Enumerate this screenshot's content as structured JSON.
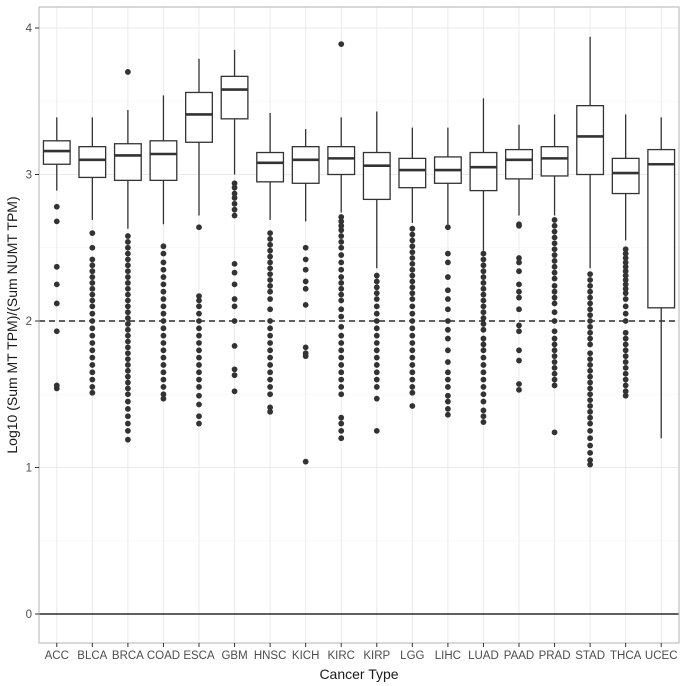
{
  "chart_data": {
    "type": "box",
    "title": "",
    "xlabel": "Cancer Type",
    "ylabel": "Log10 (Sum MT TPM)/(Sum NUMT TPM)",
    "ylim": [
      -0.25,
      4.15
    ],
    "yticks": [
      0,
      1,
      2,
      3,
      4
    ],
    "grid": true,
    "legend": null,
    "reference_lines": [
      {
        "y": 2,
        "style": "dashed"
      },
      {
        "y": 0,
        "style": "solid"
      }
    ],
    "categories": [
      "ACC",
      "BLCA",
      "BRCA",
      "COAD",
      "ESCA",
      "GBM",
      "HNSC",
      "KICH",
      "KIRC",
      "KIRP",
      "LGG",
      "LIHC",
      "LUAD",
      "PAAD",
      "PRAD",
      "STAD",
      "THCA",
      "UCEC"
    ],
    "boxes": [
      {
        "name": "ACC",
        "whisker_low": 2.89,
        "q1": 3.07,
        "median": 3.16,
        "q3": 3.23,
        "whisker_high": 3.39,
        "outliers": [
          2.78,
          2.68,
          2.37,
          2.25,
          2.12,
          1.93,
          1.56,
          1.54
        ]
      },
      {
        "name": "BLCA",
        "whisker_low": 2.69,
        "q1": 2.98,
        "median": 3.1,
        "q3": 3.19,
        "whisker_high": 3.39,
        "outliers": [
          2.6,
          2.5,
          2.42,
          2.38,
          2.34,
          2.3,
          2.26,
          2.22,
          2.18,
          2.14,
          2.1,
          2.05,
          2.0,
          1.95,
          1.9,
          1.85,
          1.8,
          1.75,
          1.7,
          1.65,
          1.6,
          1.55,
          1.51
        ]
      },
      {
        "name": "BRCA",
        "whisker_low": 2.63,
        "q1": 2.96,
        "median": 3.13,
        "q3": 3.21,
        "whisker_high": 3.44,
        "outliers": [
          3.7,
          2.58,
          2.54,
          2.5,
          2.46,
          2.42,
          2.38,
          2.34,
          2.3,
          2.26,
          2.22,
          2.18,
          2.14,
          2.1,
          2.06,
          2.02,
          1.98,
          1.94,
          1.9,
          1.86,
          1.82,
          1.78,
          1.74,
          1.7,
          1.66,
          1.62,
          1.58,
          1.54,
          1.5,
          1.45,
          1.4,
          1.35,
          1.3,
          1.25,
          1.19
        ]
      },
      {
        "name": "COAD",
        "whisker_low": 2.66,
        "q1": 2.96,
        "median": 3.14,
        "q3": 3.23,
        "whisker_high": 3.54,
        "outliers": [
          2.51,
          2.46,
          2.4,
          2.35,
          2.3,
          2.25,
          2.2,
          2.15,
          2.1,
          2.05,
          2.0,
          1.95,
          1.9,
          1.85,
          1.8,
          1.75,
          1.7,
          1.65,
          1.6,
          1.55,
          1.5,
          1.47
        ]
      },
      {
        "name": "ESCA",
        "whisker_low": 2.72,
        "q1": 3.22,
        "median": 3.41,
        "q3": 3.56,
        "whisker_high": 3.79,
        "outliers": [
          2.64,
          2.17,
          2.14,
          2.1,
          2.05,
          2.0,
          1.95,
          1.9,
          1.85,
          1.8,
          1.75,
          1.7,
          1.65,
          1.6,
          1.55,
          1.49,
          1.43,
          1.35,
          1.3
        ]
      },
      {
        "name": "GBM",
        "whisker_low": 3.0,
        "q1": 3.38,
        "median": 3.58,
        "q3": 3.67,
        "whisker_high": 3.85,
        "outliers": [
          2.94,
          2.91,
          2.87,
          2.84,
          2.8,
          2.76,
          2.72,
          2.39,
          2.33,
          2.25,
          2.15,
          2.1,
          2.0,
          1.83,
          1.67,
          1.63,
          1.52
        ]
      },
      {
        "name": "HNSC",
        "whisker_low": 2.69,
        "q1": 2.95,
        "median": 3.08,
        "q3": 3.15,
        "whisker_high": 3.42,
        "outliers": [
          2.6,
          2.56,
          2.52,
          2.48,
          2.44,
          2.4,
          2.36,
          2.32,
          2.28,
          2.24,
          2.2,
          2.15,
          2.08,
          2.0,
          1.95,
          1.9,
          1.85,
          1.8,
          1.75,
          1.7,
          1.65,
          1.6,
          1.55,
          1.5,
          1.41,
          1.38
        ]
      },
      {
        "name": "KICH",
        "whisker_low": 2.68,
        "q1": 2.94,
        "median": 3.1,
        "q3": 3.19,
        "whisker_high": 3.31,
        "outliers": [
          2.5,
          2.42,
          2.35,
          2.27,
          2.22,
          2.11,
          1.82,
          1.78,
          1.76,
          1.04
        ]
      },
      {
        "name": "KIRC",
        "whisker_low": 2.74,
        "q1": 3.0,
        "median": 3.11,
        "q3": 3.19,
        "whisker_high": 3.39,
        "outliers": [
          3.89,
          2.71,
          2.68,
          2.65,
          2.62,
          2.58,
          2.54,
          2.5,
          2.45,
          2.4,
          2.35,
          2.3,
          2.26,
          2.22,
          2.18,
          2.14,
          2.08,
          2.03,
          1.96,
          1.9,
          1.85,
          1.8,
          1.75,
          1.7,
          1.65,
          1.6,
          1.55,
          1.5,
          1.34,
          1.3,
          1.25,
          1.2
        ]
      },
      {
        "name": "KIRP",
        "whisker_low": 2.36,
        "q1": 2.83,
        "median": 3.06,
        "q3": 3.15,
        "whisker_high": 3.43,
        "outliers": [
          2.31,
          2.27,
          2.23,
          2.19,
          2.15,
          2.1,
          2.05,
          2.0,
          1.95,
          1.9,
          1.85,
          1.8,
          1.75,
          1.7,
          1.65,
          1.6,
          1.55,
          1.47,
          1.25
        ]
      },
      {
        "name": "LGG",
        "whisker_low": 2.67,
        "q1": 2.91,
        "median": 3.03,
        "q3": 3.11,
        "whisker_high": 3.32,
        "outliers": [
          2.63,
          2.59,
          2.55,
          2.51,
          2.47,
          2.43,
          2.39,
          2.35,
          2.31,
          2.27,
          2.23,
          2.19,
          2.15,
          2.1,
          2.05,
          2.0,
          1.95,
          1.9,
          1.85,
          1.8,
          1.75,
          1.7,
          1.65,
          1.6,
          1.55,
          1.51,
          1.42
        ]
      },
      {
        "name": "LIHC",
        "whisker_low": 2.66,
        "q1": 2.94,
        "median": 3.03,
        "q3": 3.12,
        "whisker_high": 3.32,
        "outliers": [
          2.64,
          2.46,
          2.4,
          2.3,
          2.21,
          2.15,
          2.08,
          2.0,
          1.94,
          1.88,
          1.8,
          1.72,
          1.65,
          1.6,
          1.55,
          1.49,
          1.45,
          1.4,
          1.36
        ]
      },
      {
        "name": "LUAD",
        "whisker_low": 2.48,
        "q1": 2.89,
        "median": 3.05,
        "q3": 3.15,
        "whisker_high": 3.52,
        "outliers": [
          2.46,
          2.42,
          2.38,
          2.34,
          2.3,
          2.26,
          2.22,
          2.18,
          2.14,
          2.1,
          2.06,
          2.02,
          1.98,
          1.94,
          1.88,
          1.84,
          1.8,
          1.75,
          1.7,
          1.65,
          1.6,
          1.55,
          1.5,
          1.45,
          1.39,
          1.35,
          1.31
        ]
      },
      {
        "name": "PAAD",
        "whisker_low": 2.72,
        "q1": 2.97,
        "median": 3.1,
        "q3": 3.17,
        "whisker_high": 3.34,
        "outliers": [
          2.66,
          2.65,
          2.43,
          2.4,
          2.34,
          2.25,
          2.2,
          2.16,
          2.08,
          1.97,
          1.93,
          1.8,
          1.73,
          1.57,
          1.53
        ]
      },
      {
        "name": "PRAD",
        "whisker_low": 2.72,
        "q1": 2.99,
        "median": 3.11,
        "q3": 3.19,
        "whisker_high": 3.41,
        "outliers": [
          2.69,
          2.65,
          2.61,
          2.57,
          2.53,
          2.49,
          2.45,
          2.41,
          2.37,
          2.33,
          2.29,
          2.24,
          2.2,
          2.16,
          2.12,
          2.06,
          2.0,
          1.93,
          1.88,
          1.84,
          1.8,
          1.76,
          1.72,
          1.68,
          1.64,
          1.6,
          1.56,
          1.24
        ]
      },
      {
        "name": "STAD",
        "whisker_low": 2.36,
        "q1": 3.0,
        "median": 3.26,
        "q3": 3.47,
        "whisker_high": 3.94,
        "outliers": [
          2.32,
          2.28,
          2.24,
          2.2,
          2.16,
          2.12,
          2.08,
          2.04,
          2.0,
          1.96,
          1.92,
          1.88,
          1.84,
          1.78,
          1.74,
          1.7,
          1.66,
          1.62,
          1.58,
          1.54,
          1.5,
          1.46,
          1.42,
          1.38,
          1.34,
          1.3,
          1.25,
          1.2,
          1.15,
          1.1,
          1.05,
          1.02
        ]
      },
      {
        "name": "THCA",
        "whisker_low": 2.55,
        "q1": 2.87,
        "median": 3.01,
        "q3": 3.11,
        "whisker_high": 3.41,
        "outliers": [
          2.49,
          2.46,
          2.43,
          2.4,
          2.37,
          2.34,
          2.31,
          2.28,
          2.25,
          2.22,
          2.19,
          2.15,
          2.1,
          2.05,
          2.0,
          1.92,
          1.88,
          1.84,
          1.8,
          1.76,
          1.72,
          1.68,
          1.64,
          1.6,
          1.56,
          1.52,
          1.49
        ]
      },
      {
        "name": "UCEC",
        "whisker_low": 1.2,
        "q1": 2.09,
        "median": 3.07,
        "q3": 3.17,
        "whisker_high": 3.39,
        "outliers": []
      }
    ]
  },
  "colors": {
    "box_stroke": "#333333",
    "outlier": "#333333",
    "grid_major": "#ebebeb",
    "grid_minor": "#f5f5f5",
    "panel_border": "#b3b3b3",
    "reference_line": "#000000"
  }
}
